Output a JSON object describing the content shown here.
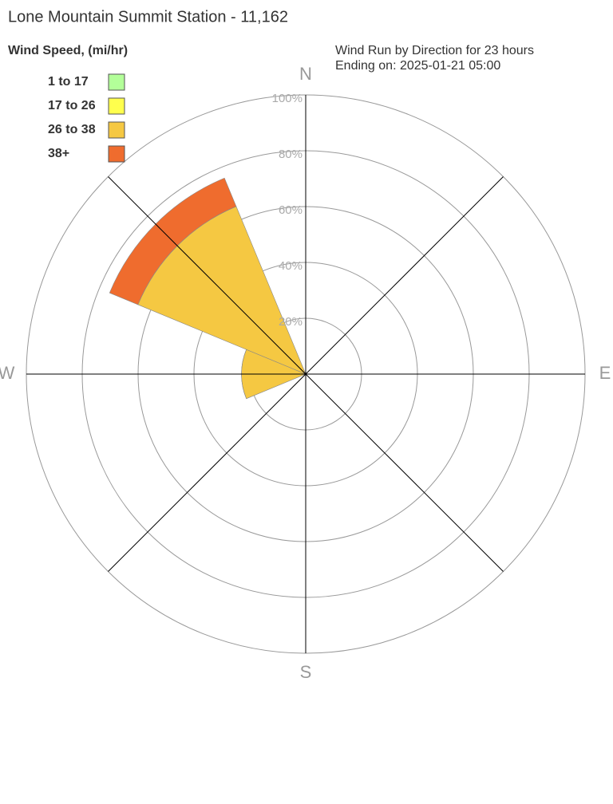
{
  "chart_data": {
    "type": "windrose",
    "title": "Lone Mountain Summit Station - 11,162",
    "subtitle": [
      "Wind Run by Direction for 23 hours",
      "Ending on: 2025-01-21 05:00"
    ],
    "legend_title": "Wind Speed, (mi/hr)",
    "categories": [
      "N",
      null,
      "E",
      null,
      "S",
      null,
      "W",
      null
    ],
    "series": [
      {
        "name": "1 to 17",
        "color": "#b3ff99",
        "values": [
          0,
          0,
          0,
          0,
          0,
          0,
          0,
          0
        ]
      },
      {
        "name": "17 to 26",
        "color": "#ffff4d",
        "values": [
          0,
          0,
          0,
          0,
          0,
          0,
          0,
          0
        ]
      },
      {
        "name": "26 to 38",
        "color": "#f5c842",
        "values": [
          0,
          0,
          0,
          0,
          0,
          0,
          23,
          65
        ]
      },
      {
        "name": "38+",
        "color": "#ef6c2e",
        "values": [
          0,
          0,
          0,
          0,
          0,
          0,
          0,
          11
        ]
      }
    ],
    "ylim": [
      0,
      100
    ],
    "yticks": [
      {
        "value": 20,
        "label": "20%"
      },
      {
        "value": 40,
        "label": "40%"
      },
      {
        "value": 60,
        "label": "60%"
      },
      {
        "value": 80,
        "label": "80%"
      },
      {
        "value": 100,
        "label": "100%"
      }
    ],
    "grid": true
  }
}
